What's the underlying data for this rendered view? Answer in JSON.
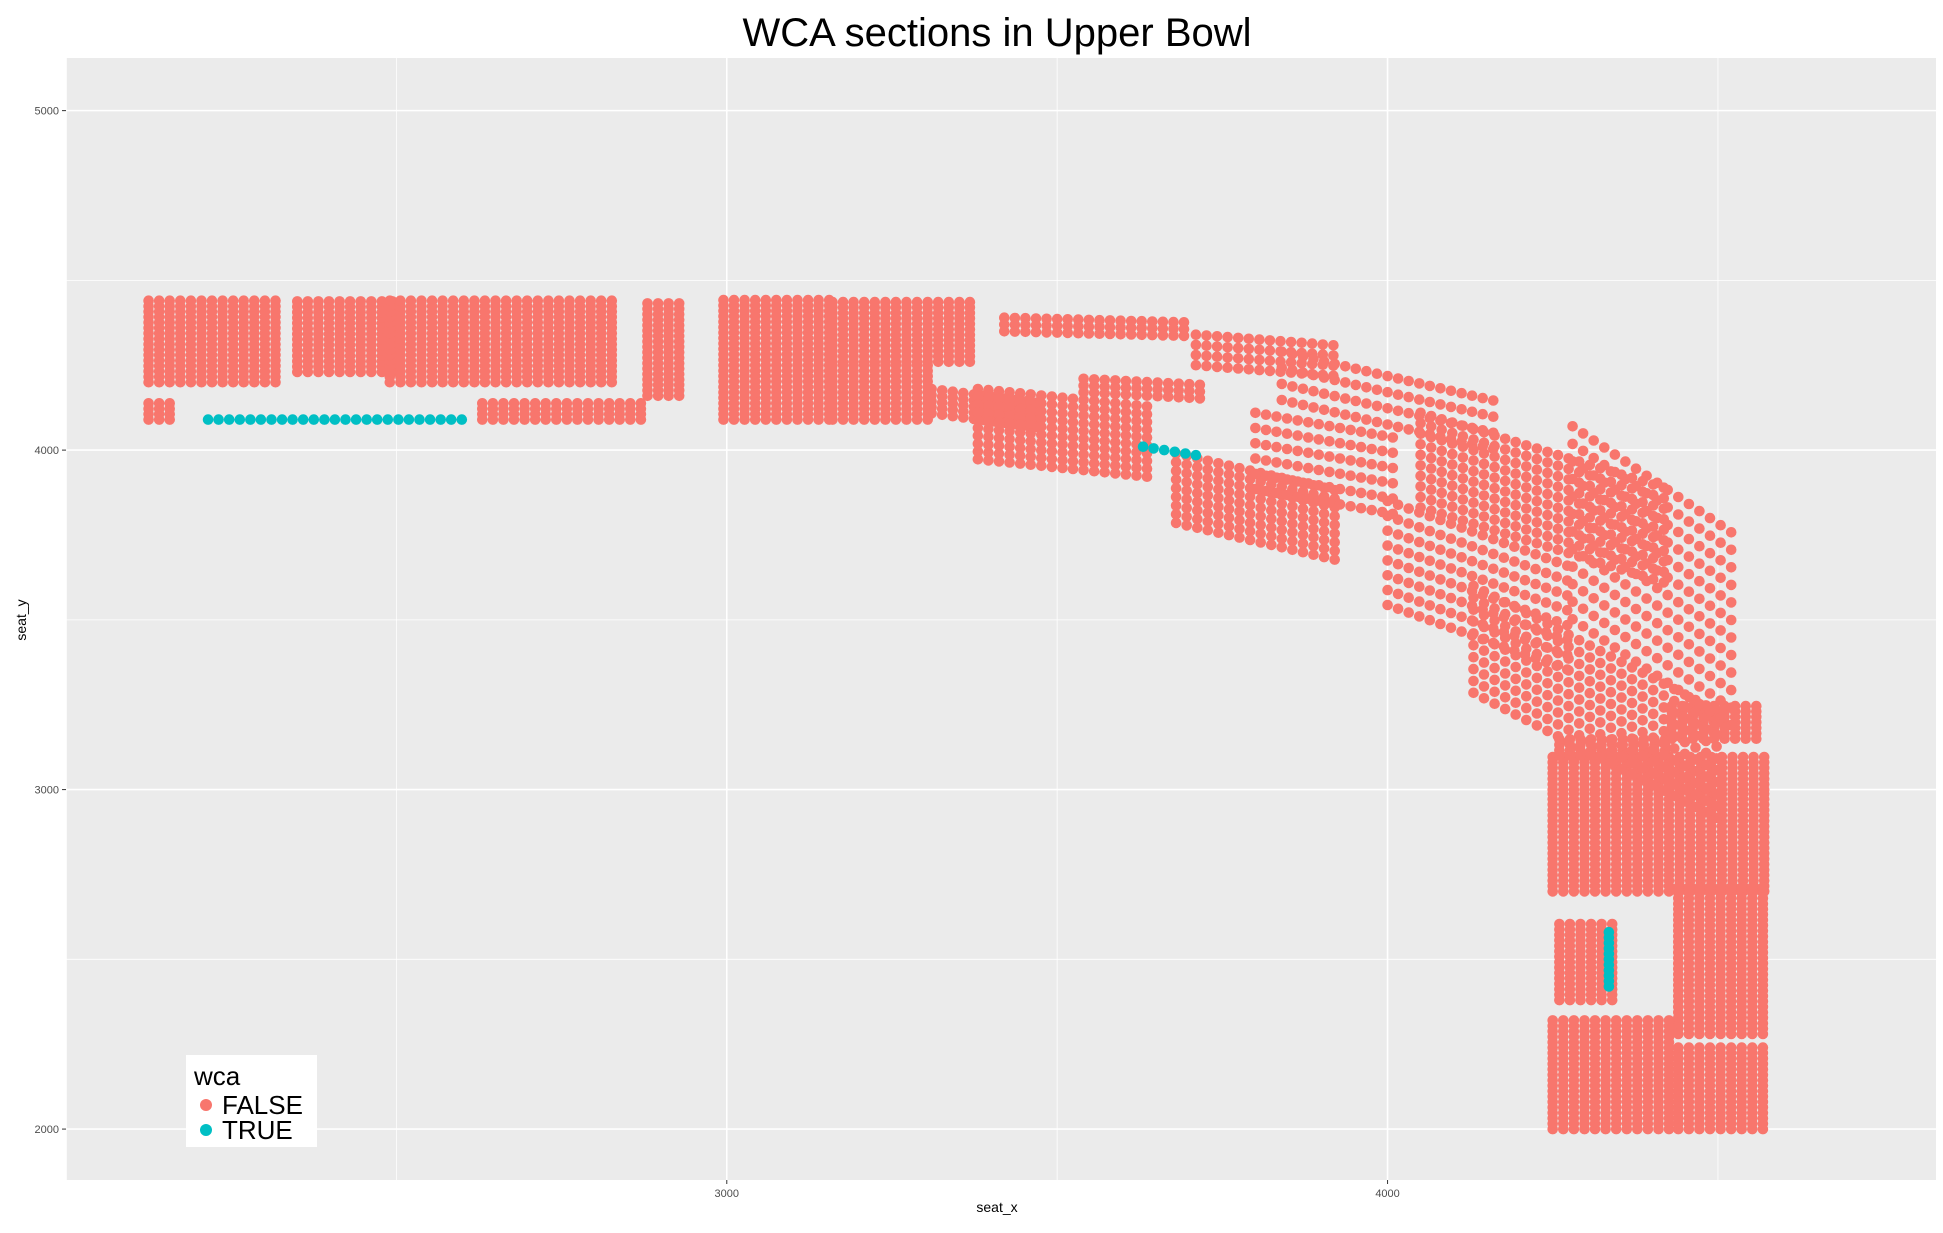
{
  "chart_data": {
    "type": "scatter",
    "title": "WCA sections in Upper Bowl",
    "xlabel": "seat_x",
    "ylabel": "seat_y",
    "xlim": [
      2000,
      4830
    ],
    "ylim": [
      1850,
      5155
    ],
    "x_ticks": [
      3000,
      4000
    ],
    "y_ticks": [
      2000,
      3000,
      4000,
      5000
    ],
    "grid": true,
    "legend": {
      "title": "wca",
      "position": "bottom-left",
      "entries": [
        {
          "label": "FALSE",
          "color": "#F8766D"
        },
        {
          "label": "TRUE",
          "color": "#00BFC4"
        }
      ]
    },
    "series": [
      {
        "name": "FALSE",
        "color": "#F8766D",
        "blocks": [
          {
            "x": [
              2125,
              2325
            ],
            "y": [
              4200,
              4450
            ],
            "step": 16
          },
          {
            "x": [
              2125,
              2170
            ],
            "y": [
              4090,
              4150
            ],
            "step": 16
          },
          {
            "x": [
              2350,
              2500
            ],
            "y": [
              4230,
              4450
            ],
            "step": 16
          },
          {
            "x": [
              2490,
              2830
            ],
            "y": [
              4200,
              4450
            ],
            "step": 16
          },
          {
            "x": [
              2630,
              2880
            ],
            "y": [
              4090,
              4150
            ],
            "step": 16
          },
          {
            "x": [
              2880,
              2930
            ],
            "y": [
              4160,
              4440
            ],
            "step": 16
          },
          {
            "x": [
              2995,
              3160
            ],
            "y": [
              4090,
              4450
            ],
            "step": 16
          },
          {
            "x": [
              3160,
              3370
            ],
            "y": [
              4260,
              4440
            ],
            "step": 16
          },
          {
            "x": [
              3160,
              3310
            ],
            "y": [
              4090,
              4250
            ],
            "step": 16
          },
          {
            "x": [
              4250,
              4580
            ],
            "y": [
              2700,
              3000
            ],
            "step": 16
          },
          {
            "x": [
              4250,
              4580
            ],
            "y": [
              3000,
              3100
            ],
            "step": 16
          },
          {
            "x": [
              4260,
              4420
            ],
            "y": [
              3100,
              3150
            ],
            "step": 16
          },
          {
            "x": [
              4430,
              4560
            ],
            "y": [
              3150,
              3250
            ],
            "step": 16
          },
          {
            "x": [
              4260,
              4350
            ],
            "y": [
              2380,
              2610
            ],
            "step": 16
          },
          {
            "x": [
              4440,
              4580
            ],
            "y": [
              2280,
              2720
            ],
            "step": 16
          },
          {
            "x": [
              4250,
              4430
            ],
            "y": [
              2000,
              2320
            ],
            "step": 16
          },
          {
            "x": [
              4440,
              4580
            ],
            "y": [
              2000,
              2250
            ],
            "step": 16
          }
        ],
        "diagonal_blocks": [
          {
            "x": [
              3310,
              3470
            ],
            "y": [
              4090,
              4180
            ],
            "slope": -0.25,
            "rows": 5
          },
          {
            "x": [
              3380,
              3650
            ],
            "y": [
              3950,
              4180
            ],
            "slope": -0.2,
            "rows": 10
          },
          {
            "x": [
              3420,
              3700
            ],
            "y": [
              4330,
              4390
            ],
            "slope": -0.05,
            "rows": 3
          },
          {
            "x": [
              3540,
              3720
            ],
            "y": [
              4150,
              4210
            ],
            "slope": -0.1,
            "rows": 3
          },
          {
            "x": [
              3680,
              3930
            ],
            "y": [
              3760,
              3990
            ],
            "slope": -0.45,
            "rows": 9
          },
          {
            "x": [
              3710,
              3930
            ],
            "y": [
              4220,
              4340
            ],
            "slope": -0.15,
            "rows": 4
          },
          {
            "x": [
              3800,
              4020
            ],
            "y": [
              3840,
              4110
            ],
            "slope": -0.35,
            "rows": 6
          },
          {
            "x": [
              3840,
              4170
            ],
            "y": [
              4100,
              4290
            ],
            "slope": -0.45,
            "rows": 4
          },
          {
            "x": [
              4000,
              4280
            ],
            "y": [
              3500,
              3850
            ],
            "slope": -0.7,
            "rows": 8
          },
          {
            "x": [
              4050,
              4420
            ],
            "y": [
              3800,
              4110
            ],
            "slope": -0.6,
            "rows": 10
          },
          {
            "x": [
              4130,
              4500
            ],
            "y": [
              3250,
              3600
            ],
            "slope": -1.0,
            "rows": 10
          },
          {
            "x": [
              4280,
              4520
            ],
            "y": [
              3450,
              4070
            ],
            "slope": -1.3,
            "rows": 12
          }
        ]
      },
      {
        "name": "TRUE",
        "color": "#00BFC4",
        "points": [
          [
            2215,
            4090
          ],
          [
            2231,
            4090
          ],
          [
            2247,
            4090
          ],
          [
            2263,
            4090
          ],
          [
            2279,
            4090
          ],
          [
            2295,
            4090
          ],
          [
            2311,
            4090
          ],
          [
            2327,
            4090
          ],
          [
            2343,
            4090
          ],
          [
            2359,
            4090
          ],
          [
            2375,
            4090
          ],
          [
            2391,
            4090
          ],
          [
            2407,
            4090
          ],
          [
            2423,
            4090
          ],
          [
            2439,
            4090
          ],
          [
            2455,
            4090
          ],
          [
            2471,
            4090
          ],
          [
            2487,
            4090
          ],
          [
            2503,
            4090
          ],
          [
            2519,
            4090
          ],
          [
            2535,
            4090
          ],
          [
            2551,
            4090
          ],
          [
            2567,
            4090
          ],
          [
            2583,
            4090
          ],
          [
            2599,
            4090
          ],
          [
            3630,
            4010
          ],
          [
            3646,
            4005
          ],
          [
            3662,
            4000
          ],
          [
            3678,
            3995
          ],
          [
            3694,
            3990
          ],
          [
            3710,
            3985
          ],
          [
            4335,
            2580
          ],
          [
            4335,
            2564
          ],
          [
            4335,
            2548
          ],
          [
            4335,
            2532
          ],
          [
            4335,
            2516
          ],
          [
            4335,
            2500
          ],
          [
            4335,
            2484
          ],
          [
            4335,
            2468
          ],
          [
            4335,
            2452
          ],
          [
            4335,
            2436
          ],
          [
            4335,
            2420
          ]
        ]
      }
    ]
  }
}
